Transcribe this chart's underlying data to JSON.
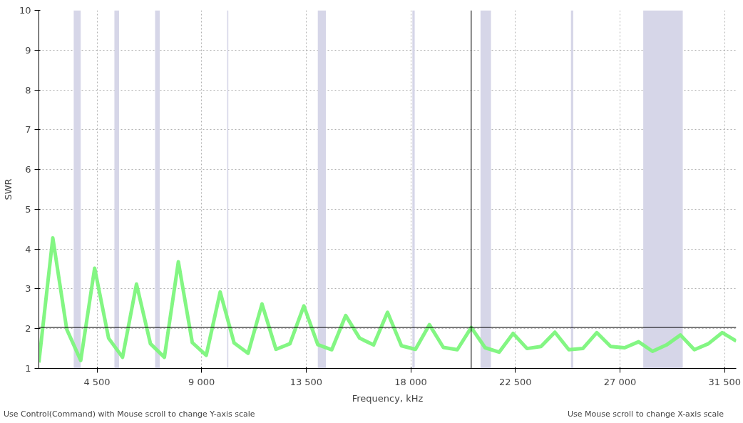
{
  "chart_data": {
    "type": "line",
    "xlabel": "Frequency, kHz",
    "ylabel": "SWR",
    "x": [
      2000,
      2600,
      3200,
      3800,
      4400,
      5000,
      5600,
      6200,
      6800,
      7400,
      8000,
      8600,
      9200,
      9800,
      10400,
      11000,
      11600,
      12200,
      12800,
      13400,
      14000,
      14600,
      15200,
      15800,
      16400,
      17000,
      17600,
      18200,
      18800,
      19400,
      20000,
      20600,
      21200,
      21800,
      22400,
      23000,
      23600,
      24200,
      24800,
      25400,
      26000,
      26600,
      27200,
      27800,
      28400,
      29000,
      29600,
      30200,
      30800,
      31400,
      32000
    ],
    "series": [
      {
        "color": "#7cf57c",
        "values": [
          1.15,
          4.28,
          1.98,
          1.2,
          3.52,
          1.76,
          1.28,
          3.12,
          1.62,
          1.28,
          3.68,
          1.65,
          1.33,
          2.92,
          1.64,
          1.38,
          2.62,
          1.48,
          1.62,
          2.57,
          1.6,
          1.47,
          2.33,
          1.76,
          1.59,
          2.41,
          1.57,
          1.48,
          2.1,
          1.53,
          1.47,
          2.03,
          1.52,
          1.41,
          1.88,
          1.5,
          1.55,
          1.91,
          1.47,
          1.5,
          1.9,
          1.55,
          1.52,
          1.67,
          1.43,
          1.59,
          1.84,
          1.47,
          1.62,
          1.9,
          1.69
        ]
      }
    ],
    "xlim": [
      2000,
      32000
    ],
    "ylim": [
      1,
      10
    ],
    "xticks": [
      {
        "value": 4500,
        "label": "4 500"
      },
      {
        "value": 9000,
        "label": "9 000"
      },
      {
        "value": 13500,
        "label": "13 500"
      },
      {
        "value": 18000,
        "label": "18 000"
      },
      {
        "value": 22500,
        "label": "22 500"
      },
      {
        "value": 27000,
        "label": "27 000"
      },
      {
        "value": 31500,
        "label": "31 500"
      }
    ],
    "yticks": [
      1,
      2,
      3,
      4,
      5,
      6,
      7,
      8,
      9,
      10
    ],
    "grid": true,
    "line_style": "solid",
    "ref_lines": [
      {
        "axis": "x",
        "value": 20600,
        "color": "#000000"
      },
      {
        "axis": "y",
        "value": 2.03,
        "color": "#000000"
      }
    ],
    "bands": [
      {
        "axis": "x",
        "from": 3500,
        "to": 3800,
        "color": "#d6d6e8"
      },
      {
        "axis": "x",
        "from": 5250,
        "to": 5450,
        "color": "#d6d6e8"
      },
      {
        "axis": "x",
        "from": 7000,
        "to": 7200,
        "color": "#d6d6e8"
      },
      {
        "axis": "x",
        "from": 10100,
        "to": 10150,
        "color": "#d6d6e8"
      },
      {
        "axis": "x",
        "from": 14000,
        "to": 14350,
        "color": "#d6d6e8"
      },
      {
        "axis": "x",
        "from": 18068,
        "to": 18168,
        "color": "#d6d6e8"
      },
      {
        "axis": "x",
        "from": 21000,
        "to": 21450,
        "color": "#d6d6e8"
      },
      {
        "axis": "x",
        "from": 24890,
        "to": 24990,
        "color": "#d6d6e8"
      },
      {
        "axis": "x",
        "from": 28000,
        "to": 29700,
        "color": "#d6d6e8"
      }
    ],
    "annotations": [
      "Use Control(Command) with Mouse scroll to change Y-axis scale",
      "Use Mouse scroll to change X-axis scale"
    ]
  }
}
